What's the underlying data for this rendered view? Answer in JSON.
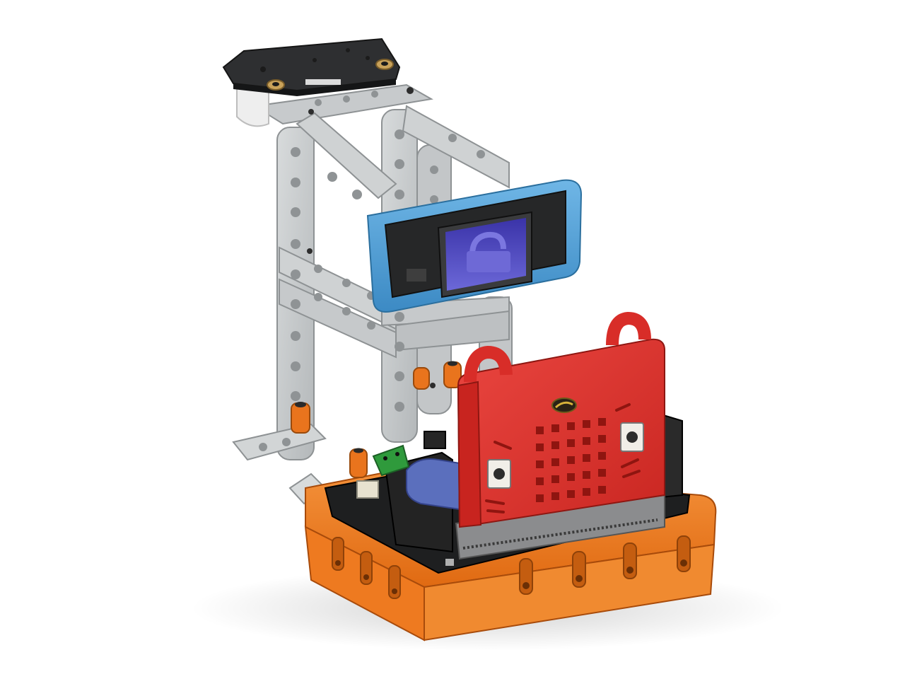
{
  "scene": {
    "subject": "robot-kit-assembly",
    "background_color": "#ffffff",
    "colors": {
      "frame_gray": "#c9cccd",
      "frame_gray_dark": "#9ea2a4",
      "base_orange": "#f07d22",
      "case_red": "#e0322c",
      "screen_frame_blue": "#4d9fd6",
      "screen_purple": "#5a55c8",
      "pcb_black": "#1e1e1e",
      "bolt_orange": "#e9741d",
      "terminal_green": "#2f9a3c",
      "battery_blue": "#5b6fbd",
      "edge_connector_gray": "#8b8c8e"
    },
    "components": [
      {
        "name": "studless-beam-frame",
        "icon": "beam-frame-icon"
      },
      {
        "name": "sensor-mount-plate",
        "icon": "plate-icon"
      },
      {
        "name": "oled-display-module",
        "icon": "screen-icon"
      },
      {
        "name": "microcontroller-red-case",
        "icon": "board-icon"
      },
      {
        "name": "expansion-board",
        "icon": "pcb-icon"
      },
      {
        "name": "orange-base-case",
        "icon": "case-icon"
      }
    ]
  }
}
